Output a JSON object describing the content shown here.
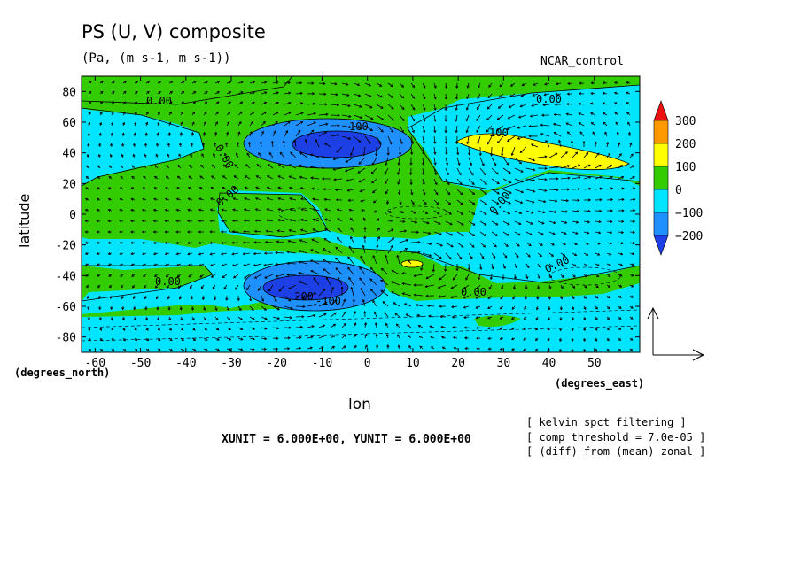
{
  "header": {
    "title": "PS (U, V) composite",
    "subtitle": "(Pa, (m s-1, m s-1))",
    "run_name": "NCAR_control"
  },
  "axes": {
    "x_label": "lon",
    "y_label": "latitude",
    "x_units": "(degrees_east)",
    "y_units": "(degrees_north)"
  },
  "footer": {
    "unit_line": "XUNIT = 6.000E+00, YUNIT = 6.000E+00",
    "notes": [
      "[ kelvin spct filtering ]",
      "[ comp threshold = 7.0e-05 ]",
      "[ (diff) from (mean) zonal ]"
    ]
  },
  "chart_data": {
    "type": "heatmap",
    "variable": "PS with (U, V) wind vectors",
    "xlim": [
      -63,
      60
    ],
    "ylim": [
      -90,
      90
    ],
    "x_ticks": [
      -60,
      -50,
      -40,
      -30,
      -20,
      -10,
      0,
      10,
      20,
      30,
      40,
      50
    ],
    "y_ticks": [
      80,
      60,
      40,
      20,
      0,
      -20,
      -40,
      -60,
      -80
    ],
    "colorbar": {
      "levels": [
        300,
        200,
        100,
        0,
        -100,
        -200
      ],
      "colors": [
        "#ee1111",
        "#ff9900",
        "#ffff00",
        "#33cc00",
        "#00e5ff",
        "#1e90ff",
        "#1c3fe6"
      ]
    },
    "contour_labels": [
      "0.00",
      "0.00",
      "0.00",
      "0.00",
      "0.00",
      "0.00",
      "0.00",
      "100",
      "100",
      "-200",
      "-100"
    ],
    "features": [
      {
        "type": "low",
        "lon": -10,
        "lat": 42,
        "min_value": -250
      },
      {
        "type": "low",
        "lon": -15,
        "lat": -45,
        "min_value": -250
      },
      {
        "type": "high",
        "lon": 35,
        "lat": 42,
        "max_value": 180
      },
      {
        "type": "high",
        "lon": 10,
        "lat": -30,
        "max_value": 110
      }
    ]
  }
}
